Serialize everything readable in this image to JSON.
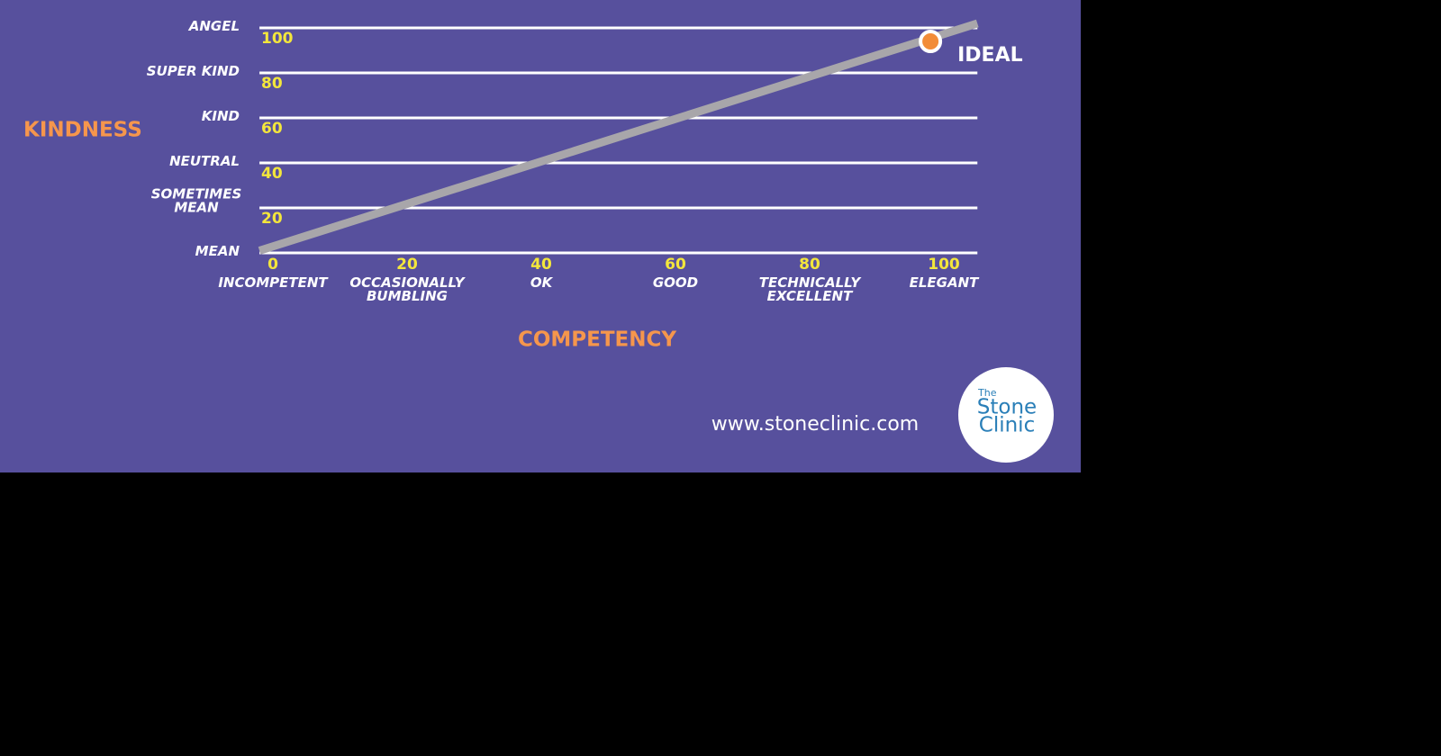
{
  "chart_data": {
    "type": "line",
    "ylabel": "KINDNESS",
    "xlabel": "COMPETENCY",
    "xlim": [
      -2,
      105
    ],
    "ylim": [
      0,
      100
    ],
    "xticks": [
      0,
      20,
      40,
      60,
      80,
      100
    ],
    "yticks": [
      20,
      40,
      60,
      80,
      100
    ],
    "ylevels": [
      {
        "value": 0,
        "label": [
          "MEAN"
        ]
      },
      {
        "value": 20,
        "label": [
          "SOMETIMES",
          "MEAN"
        ]
      },
      {
        "value": 40,
        "label": [
          "NEUTRAL"
        ]
      },
      {
        "value": 60,
        "label": [
          "KIND"
        ]
      },
      {
        "value": 80,
        "label": [
          "SUPER KIND"
        ]
      },
      {
        "value": 100,
        "label": [
          "ANGEL"
        ]
      }
    ],
    "xlevels": [
      {
        "value": 0,
        "label": [
          "INCOMPETENT"
        ]
      },
      {
        "value": 20,
        "label": [
          "OCCASIONALLY",
          "BUMBLING"
        ]
      },
      {
        "value": 40,
        "label": [
          "OK"
        ]
      },
      {
        "value": 60,
        "label": [
          "GOOD"
        ]
      },
      {
        "value": 80,
        "label": [
          "TECHNICALLY",
          "EXCELLENT"
        ]
      },
      {
        "value": 100,
        "label": [
          "ELEGANT"
        ]
      }
    ],
    "grid_color": "#ffffff",
    "series": [
      {
        "x": [
          -2,
          105
        ],
        "values": [
          1,
          102
        ],
        "color": "#a8a6aa"
      }
    ],
    "points": [
      {
        "x": 98,
        "value": 94,
        "label": "IDEAL",
        "color": "#f28c38"
      }
    ]
  },
  "footer": {
    "url": "www.stoneclinic.com",
    "logo": [
      "The",
      "Stone",
      "Clinic"
    ]
  }
}
